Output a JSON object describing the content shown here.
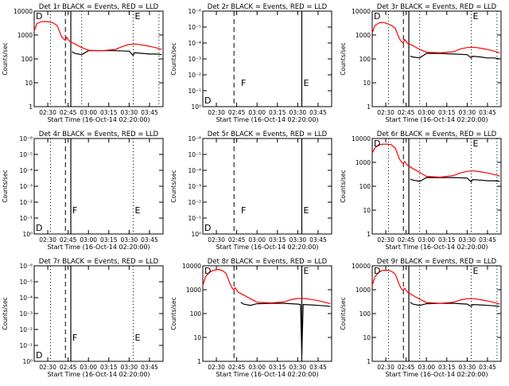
{
  "figure": {
    "xlabel": "Start Time (16-Oct-14 02:20:00)",
    "ylabel": "Counts/sec",
    "x_tick_labels": [
      "02:30",
      "02:45",
      "03:00",
      "03:15",
      "03:30",
      "03:45"
    ],
    "colors": {
      "events": "#000000",
      "lld": "#ff0000",
      "axes": "#000000"
    }
  },
  "chart_data": [
    {
      "type": "line",
      "panel": 1,
      "title": "Det 1r BLACK = Events, RED = LLD",
      "yscale": "log",
      "ylim": [
        1,
        10000
      ],
      "y_tick_labels": [
        "1",
        "10",
        "100",
        "1000",
        "10000"
      ],
      "xlim": [
        "02:20",
        "03:55"
      ],
      "markers": {
        "dotted": [
          "02:32",
          "02:55",
          "03:33",
          "03:52"
        ],
        "dashed": [
          "02:43"
        ],
        "solid": [
          "02:47"
        ]
      },
      "letters": [
        {
          "text": "D",
          "x": "02:20"
        },
        {
          "text": "E",
          "x": "03:33"
        }
      ],
      "series": [
        {
          "name": "Events",
          "x": [
            "02:20",
            "02:47",
            "02:48",
            "02:50",
            "02:55",
            "03:00",
            "03:10",
            "03:20",
            "03:30",
            "03:33",
            "03:34",
            "03:40",
            "03:45",
            "03:50",
            "03:54"
          ],
          "values": [
            null,
            null,
            200,
            170,
            150,
            220,
            220,
            220,
            210,
            140,
            180,
            170,
            160,
            160,
            150
          ]
        },
        {
          "name": "LLD",
          "x": [
            "02:20",
            "02:22",
            "02:25",
            "02:28",
            "02:31",
            "02:34",
            "02:37",
            "02:40",
            "02:42",
            "02:43",
            "02:44",
            "02:46",
            "02:50",
            "02:55",
            "03:00",
            "03:10",
            "03:20",
            "03:25",
            "03:30",
            "03:35",
            "03:40",
            "03:45",
            "03:50",
            "03:54"
          ],
          "values": [
            1500,
            3000,
            3600,
            3700,
            3500,
            3200,
            2500,
            900,
            650,
            600,
            800,
            550,
            420,
            300,
            230,
            220,
            250,
            330,
            400,
            420,
            380,
            340,
            290,
            250
          ]
        }
      ]
    },
    {
      "type": "line",
      "panel": 2,
      "title": "Det 2r BLACK = Events, RED = LLD",
      "yscale": "log",
      "ylim": [
        1,
        1e-06
      ],
      "y_tick_labels": [
        "10⁰",
        "10⁻¹",
        "10⁻²",
        "10⁻³",
        "10⁻⁴",
        "10⁻⁵",
        "10⁻⁶"
      ],
      "xlim": [
        "02:20",
        "03:55"
      ],
      "markers": {
        "dotted": [],
        "dashed": [
          "02:43"
        ],
        "solid": [
          "03:33"
        ]
      },
      "letters": [
        {
          "text": "D",
          "x": "02:20"
        },
        {
          "text": "F",
          "x": "02:47"
        },
        {
          "text": "E",
          "x": "03:33"
        }
      ],
      "series": []
    },
    {
      "type": "line",
      "panel": 3,
      "title": "Det 3r BLACK = Events, RED = LLD",
      "yscale": "log",
      "ylim": [
        1,
        10000
      ],
      "y_tick_labels": [
        "1",
        "10",
        "100",
        "1000",
        "10000"
      ],
      "xlim": [
        "02:20",
        "03:55"
      ],
      "markers": {
        "dotted": [
          "02:32",
          "02:55",
          "03:33",
          "03:52"
        ],
        "dashed": [
          "02:43"
        ],
        "solid": [
          "02:47"
        ]
      },
      "letters": [
        {
          "text": "D",
          "x": "02:20"
        },
        {
          "text": "E",
          "x": "03:33"
        }
      ],
      "series": [
        {
          "name": "Events",
          "x": [
            "02:20",
            "02:47",
            "02:48",
            "02:50",
            "02:55",
            "03:00",
            "03:10",
            "03:20",
            "03:30",
            "03:33",
            "03:34",
            "03:40",
            "03:45",
            "03:50",
            "03:54"
          ],
          "values": [
            null,
            null,
            130,
            120,
            110,
            170,
            170,
            160,
            150,
            110,
            130,
            120,
            110,
            110,
            100
          ]
        },
        {
          "name": "LLD",
          "x": [
            "02:20",
            "02:22",
            "02:25",
            "02:28",
            "02:31",
            "02:34",
            "02:37",
            "02:40",
            "02:42",
            "02:43",
            "02:44",
            "02:46",
            "02:50",
            "02:55",
            "03:00",
            "03:10",
            "03:20",
            "03:25",
            "03:30",
            "03:35",
            "03:40",
            "03:45",
            "03:50",
            "03:54"
          ],
          "values": [
            1200,
            2500,
            3200,
            3400,
            3000,
            2600,
            1900,
            700,
            500,
            480,
            650,
            450,
            360,
            250,
            190,
            180,
            200,
            260,
            300,
            310,
            280,
            250,
            210,
            180
          ]
        }
      ]
    },
    {
      "type": "line",
      "panel": 4,
      "title": "Det 4r BLACK = Events, RED = LLD",
      "yscale": "log",
      "ylim": [
        1,
        1e-06
      ],
      "y_tick_labels": [
        "10⁰",
        "10⁻¹",
        "10⁻²",
        "10⁻³",
        "10⁻⁴",
        "10⁻⁵",
        "10⁻⁶"
      ],
      "xlim": [
        "02:20",
        "03:55"
      ],
      "markers": {
        "dotted": [
          "02:32",
          "03:33"
        ],
        "dashed": [
          "02:43"
        ],
        "solid": [
          "02:47"
        ]
      },
      "letters": [
        {
          "text": "D",
          "x": "02:20"
        },
        {
          "text": "F",
          "x": "02:47"
        },
        {
          "text": "E",
          "x": "03:33"
        }
      ],
      "series": []
    },
    {
      "type": "line",
      "panel": 5,
      "title": "Det 5r BLACK = Events, RED = LLD",
      "yscale": "log",
      "ylim": [
        1,
        1e-06
      ],
      "y_tick_labels": [
        "10⁰",
        "10⁻¹",
        "10⁻²",
        "10⁻³",
        "10⁻⁴",
        "10⁻⁵",
        "10⁻⁶"
      ],
      "xlim": [
        "02:20",
        "03:55"
      ],
      "markers": {
        "dotted": [],
        "dashed": [
          "02:43"
        ],
        "solid": [
          "03:33"
        ]
      },
      "letters": [
        {
          "text": "D",
          "x": "02:20"
        },
        {
          "text": "F",
          "x": "02:47"
        },
        {
          "text": "E",
          "x": "03:33"
        }
      ],
      "series": []
    },
    {
      "type": "line",
      "panel": 6,
      "title": "Det 6r BLACK = Events, RED = LLD",
      "yscale": "log",
      "ylim": [
        1,
        10000
      ],
      "y_tick_labels": [
        "1",
        "10",
        "100",
        "1000",
        "10000"
      ],
      "xlim": [
        "02:20",
        "03:55"
      ],
      "markers": {
        "dotted": [
          "02:32",
          "02:55",
          "03:33",
          "03:52"
        ],
        "dashed": [
          "02:43"
        ],
        "solid": [
          "02:47"
        ]
      },
      "letters": [
        {
          "text": "D",
          "x": "02:20"
        },
        {
          "text": "E",
          "x": "03:33"
        }
      ],
      "series": [
        {
          "name": "Events",
          "x": [
            "02:20",
            "02:47",
            "02:48",
            "02:50",
            "02:55",
            "03:00",
            "03:10",
            "03:20",
            "03:30",
            "03:33",
            "03:34",
            "03:40",
            "03:45",
            "03:50",
            "03:54"
          ],
          "values": [
            null,
            null,
            200,
            180,
            160,
            230,
            230,
            230,
            220,
            150,
            190,
            180,
            170,
            170,
            160
          ]
        },
        {
          "name": "LLD",
          "x": [
            "02:20",
            "02:22",
            "02:25",
            "02:28",
            "02:31",
            "02:34",
            "02:37",
            "02:40",
            "02:42",
            "02:43",
            "02:44",
            "02:46",
            "02:50",
            "02:55",
            "03:00",
            "03:10",
            "03:20",
            "03:25",
            "03:30",
            "03:35",
            "03:40",
            "03:45",
            "03:50",
            "03:54"
          ],
          "values": [
            2500,
            4000,
            5500,
            5800,
            5800,
            5500,
            4000,
            1400,
            950,
            900,
            1100,
            750,
            550,
            380,
            260,
            240,
            280,
            360,
            420,
            440,
            400,
            360,
            310,
            270
          ]
        }
      ]
    },
    {
      "type": "line",
      "panel": 7,
      "title": "Det 7r BLACK = Events, RED = LLD",
      "yscale": "log",
      "ylim": [
        1,
        1e-06
      ],
      "y_tick_labels": [
        "10⁰",
        "10⁻¹",
        "10⁻²",
        "10⁻³",
        "10⁻⁴",
        "10⁻⁵",
        "10⁻⁶"
      ],
      "xlim": [
        "02:20",
        "03:55"
      ],
      "markers": {
        "dotted": [
          "02:32",
          "03:33"
        ],
        "dashed": [
          "02:43"
        ],
        "solid": [
          "02:47"
        ]
      },
      "letters": [
        {
          "text": "D",
          "x": "02:20"
        },
        {
          "text": "F",
          "x": "02:47"
        },
        {
          "text": "E",
          "x": "03:33"
        }
      ],
      "series": []
    },
    {
      "type": "line",
      "panel": 8,
      "title": "Det 8r BLACK = Events, RED = LLD",
      "yscale": "log",
      "ylim": [
        1,
        10000
      ],
      "y_tick_labels": [
        "1",
        "10",
        "100",
        "1000",
        "10000"
      ],
      "xlim": [
        "02:20",
        "03:55"
      ],
      "markers": {
        "dotted": [],
        "dashed": [
          "02:43"
        ],
        "solid": [
          "03:33"
        ]
      },
      "letters": [
        {
          "text": "D",
          "x": "02:20"
        },
        {
          "text": "E",
          "x": "03:33"
        }
      ],
      "series": [
        {
          "name": "Events",
          "x": [
            "02:20",
            "02:47",
            "02:48",
            "02:50",
            "02:55",
            "03:00",
            "03:10",
            "03:20",
            "03:30",
            "03:32",
            "03:33",
            "03:34",
            "03:40",
            "03:45",
            "03:50",
            "03:54"
          ],
          "values": [
            null,
            null,
            300,
            250,
            220,
            260,
            270,
            270,
            250,
            240,
            2,
            240,
            230,
            220,
            210,
            200
          ]
        },
        {
          "name": "LLD",
          "x": [
            "02:20",
            "02:22",
            "02:25",
            "02:28",
            "02:31",
            "02:34",
            "02:37",
            "02:40",
            "02:42",
            "02:43",
            "02:44",
            "02:46",
            "02:50",
            "02:55",
            "03:00",
            "03:10",
            "03:20",
            "03:25",
            "03:30",
            "03:35",
            "03:40",
            "03:45",
            "03:50",
            "03:54"
          ],
          "values": [
            1500,
            3500,
            5500,
            6500,
            7000,
            6500,
            5000,
            1800,
            1100,
            1000,
            1200,
            800,
            600,
            420,
            300,
            280,
            310,
            380,
            430,
            430,
            390,
            350,
            300,
            260
          ]
        }
      ]
    },
    {
      "type": "line",
      "panel": 9,
      "title": "Det 9r BLACK = Events, RED = LLD",
      "yscale": "log",
      "ylim": [
        1,
        10000
      ],
      "y_tick_labels": [
        "1",
        "10",
        "100",
        "1000",
        "10000"
      ],
      "xlim": [
        "02:20",
        "03:55"
      ],
      "markers": {
        "dotted": [
          "02:32",
          "02:55",
          "03:33",
          "03:52"
        ],
        "dashed": [
          "02:43"
        ],
        "solid": [
          "02:47"
        ]
      },
      "letters": [
        {
          "text": "D",
          "x": "02:20"
        },
        {
          "text": "E",
          "x": "03:33"
        }
      ],
      "series": [
        {
          "name": "Events",
          "x": [
            "02:20",
            "02:47",
            "02:48",
            "02:50",
            "02:55",
            "03:00",
            "03:10",
            "03:20",
            "03:30",
            "03:33",
            "03:34",
            "03:40",
            "03:45",
            "03:50",
            "03:54"
          ],
          "values": [
            null,
            null,
            300,
            250,
            220,
            260,
            270,
            270,
            250,
            200,
            240,
            230,
            220,
            210,
            200
          ]
        },
        {
          "name": "LLD",
          "x": [
            "02:20",
            "02:22",
            "02:25",
            "02:28",
            "02:31",
            "02:34",
            "02:37",
            "02:40",
            "02:42",
            "02:43",
            "02:44",
            "02:46",
            "02:50",
            "02:55",
            "03:00",
            "03:10",
            "03:20",
            "03:25",
            "03:30",
            "03:35",
            "03:40",
            "03:45",
            "03:50",
            "03:54"
          ],
          "values": [
            1500,
            3500,
            5500,
            6500,
            6500,
            6000,
            4500,
            1600,
            1000,
            950,
            1150,
            780,
            580,
            400,
            290,
            270,
            300,
            370,
            420,
            420,
            380,
            340,
            290,
            250
          ]
        }
      ]
    }
  ]
}
